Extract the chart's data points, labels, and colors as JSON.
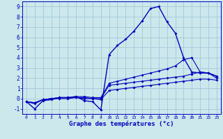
{
  "xlabel": "Graphe des températures (°c)",
  "background_color": "#cce8ed",
  "grid_color": "#a8ccda",
  "line_color": "#0000bb",
  "xlim": [
    -0.5,
    23.5
  ],
  "ylim": [
    -1.5,
    9.5
  ],
  "yticks": [
    -1,
    0,
    1,
    2,
    3,
    4,
    5,
    6,
    7,
    8,
    9
  ],
  "xticks": [
    0,
    1,
    2,
    3,
    4,
    5,
    6,
    7,
    8,
    9,
    10,
    11,
    12,
    13,
    14,
    15,
    16,
    17,
    18,
    19,
    20,
    21,
    22,
    23
  ],
  "series": [
    {
      "x": [
        0,
        1,
        2,
        3,
        4,
        5,
        6,
        7,
        8,
        9,
        10,
        11,
        12,
        13,
        14,
        15,
        16,
        17,
        18,
        19,
        20,
        21,
        22,
        23
      ],
      "y": [
        -0.3,
        -1.0,
        -0.2,
        -0.1,
        0.1,
        0.1,
        0.2,
        -0.2,
        -0.3,
        -1.1,
        4.3,
        5.2,
        5.8,
        6.6,
        7.6,
        8.8,
        9.0,
        7.5,
        6.4,
        4.0,
        2.6,
        2.5,
        2.5,
        2.2
      ]
    },
    {
      "x": [
        0,
        1,
        2,
        3,
        4,
        5,
        6,
        7,
        8,
        9,
        10,
        11,
        12,
        13,
        14,
        15,
        16,
        17,
        18,
        19,
        20,
        21,
        22,
        23
      ],
      "y": [
        -0.3,
        -0.5,
        -0.1,
        0.0,
        0.1,
        0.1,
        0.2,
        0.2,
        0.1,
        0.1,
        1.5,
        1.7,
        1.9,
        2.1,
        2.3,
        2.5,
        2.7,
        2.9,
        3.2,
        3.8,
        4.0,
        2.6,
        2.5,
        2.2
      ]
    },
    {
      "x": [
        0,
        1,
        2,
        3,
        4,
        5,
        6,
        7,
        8,
        9,
        10,
        11,
        12,
        13,
        14,
        15,
        16,
        17,
        18,
        19,
        20,
        21,
        22,
        23
      ],
      "y": [
        -0.3,
        -0.4,
        -0.1,
        0.0,
        0.1,
        0.1,
        0.1,
        0.1,
        0.0,
        0.0,
        1.3,
        1.4,
        1.5,
        1.6,
        1.7,
        1.8,
        1.9,
        2.0,
        2.1,
        2.2,
        2.4,
        2.6,
        2.5,
        2.0
      ]
    },
    {
      "x": [
        0,
        1,
        2,
        3,
        4,
        5,
        6,
        7,
        8,
        9,
        10,
        11,
        12,
        13,
        14,
        15,
        16,
        17,
        18,
        19,
        20,
        21,
        22,
        23
      ],
      "y": [
        -0.3,
        -0.4,
        -0.1,
        0.0,
        0.0,
        0.0,
        0.1,
        0.0,
        0.0,
        -0.1,
        0.8,
        0.9,
        1.0,
        1.1,
        1.2,
        1.3,
        1.4,
        1.5,
        1.6,
        1.7,
        1.8,
        1.9,
        1.9,
        1.8
      ]
    }
  ]
}
